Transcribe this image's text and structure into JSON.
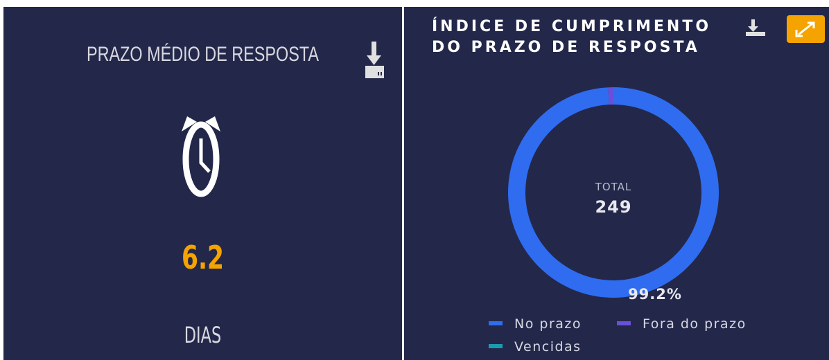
{
  "left": {
    "title": "PRAZO MÉDIO DE RESPOSTA",
    "value": 6.2,
    "unit": "DIAS"
  },
  "chart_data": {
    "type": "donut",
    "title": "ÍNDICE DE CUMPRIMENTO DO PRAZO DE RESPOSTA",
    "center_label": "TOTAL",
    "center_value": 249,
    "categories": [
      "No prazo",
      "Fora do prazo",
      "Vencidas"
    ],
    "values": [
      99.2,
      0.8,
      0
    ],
    "value_labels": [
      "99.2%",
      null,
      null
    ],
    "colors": [
      "#2f6cf0",
      "#6a4fd8",
      "#1a9cb0"
    ]
  }
}
